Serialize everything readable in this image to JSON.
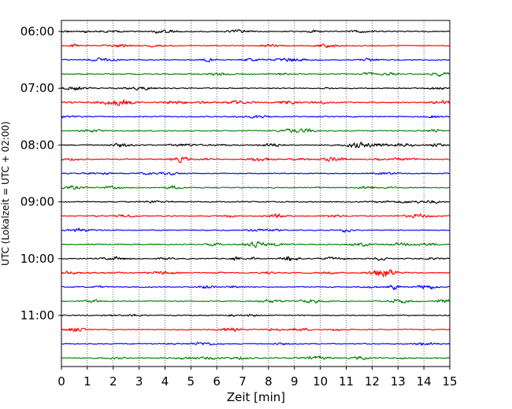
{
  "chart_data": {
    "type": "line",
    "title": "",
    "xlabel": "Zeit  [min]",
    "ylabel": "UTC (Lokalzeit = UTC + 02:00)",
    "xlim": [
      0,
      15
    ],
    "x_ticks": [
      0,
      1,
      2,
      3,
      4,
      5,
      6,
      7,
      8,
      9,
      10,
      11,
      12,
      13,
      14,
      15
    ],
    "x_tick_labels": [
      "0",
      "1",
      "2",
      "3",
      "4",
      "5",
      "6",
      "7",
      "8",
      "9",
      "10",
      "11",
      "12",
      "13",
      "14",
      "15"
    ],
    "y_tick_labels": [
      "06:00",
      "07:00",
      "08:00",
      "09:00",
      "10:00",
      "11:00"
    ],
    "trace_start_times": [
      "06:00",
      "06:15",
      "06:30",
      "06:45",
      "07:00",
      "07:15",
      "07:30",
      "07:45",
      "08:00",
      "08:15",
      "08:30",
      "08:45",
      "09:00",
      "09:15",
      "09:30",
      "09:45",
      "10:00",
      "10:15",
      "10:30",
      "10:45",
      "11:00",
      "11:15",
      "11:30",
      "11:45"
    ],
    "trace_minutes_per_line": 15,
    "colors": [
      "#000000",
      "#ff0000",
      "#0000ff",
      "#008000"
    ],
    "grid": {
      "x": true,
      "style": "dotted"
    },
    "legend": "none",
    "background": "#ffffff"
  }
}
